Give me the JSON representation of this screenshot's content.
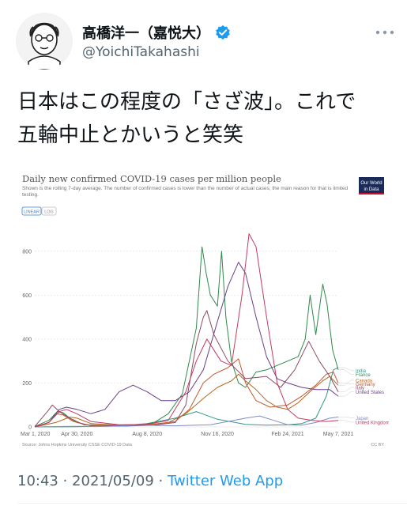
{
  "user": {
    "display_name": "高橋洋一（嘉悦大）",
    "handle": "@YoichiTakahashi",
    "verified": true
  },
  "tweet": {
    "text_line1": "日本はこの程度の「さざ波」。これで",
    "text_line2": "五輪中止とかいうと笑笑"
  },
  "footer": {
    "time": "10:43",
    "date": "2021/05/09",
    "separator": " · ",
    "app": "Twitter Web App"
  },
  "chart_data": {
    "type": "line",
    "title": "Daily new confirmed COVID-19 cases per million people",
    "subtitle": "Shown is the rolling 7-day average. The number of confirmed cases is lower than the number of actual cases; the main reason for that is limited testing.",
    "logo_text": [
      "Our World",
      "in Data"
    ],
    "toggle": [
      "LINEAR",
      "LOG"
    ],
    "source": "Source: Johns Hopkins University CSSE COVID-19 Data",
    "license": "CC BY",
    "ylim": [
      0,
      900
    ],
    "yticks": [
      0,
      200,
      400,
      600,
      800
    ],
    "x_tick_labels": [
      "Mar 1, 2020",
      "Apr 30, 2020",
      "Aug 8, 2020",
      "Nov 16, 2020",
      "Feb 24, 2021",
      "May 7, 2021"
    ],
    "x_tick_days": [
      0,
      60,
      160,
      260,
      360,
      432
    ],
    "x_range_days": [
      0,
      432
    ],
    "series": [
      {
        "name": "India",
        "color": "#2e9b86",
        "label_y": 258,
        "points": [
          [
            0,
            0
          ],
          [
            60,
            1
          ],
          [
            120,
            5
          ],
          [
            160,
            15
          ],
          [
            200,
            40
          ],
          [
            230,
            70
          ],
          [
            260,
            35
          ],
          [
            300,
            12
          ],
          [
            330,
            8
          ],
          [
            360,
            10
          ],
          [
            380,
            15
          ],
          [
            400,
            40
          ],
          [
            415,
            140
          ],
          [
            425,
            260
          ],
          [
            432,
            270
          ]
        ]
      },
      {
        "name": "France",
        "color": "#2e8a4a",
        "label_y": 240,
        "points": [
          [
            0,
            2
          ],
          [
            20,
            30
          ],
          [
            32,
            70
          ],
          [
            40,
            65
          ],
          [
            50,
            40
          ],
          [
            60,
            20
          ],
          [
            80,
            6
          ],
          [
            120,
            4
          ],
          [
            150,
            8
          ],
          [
            170,
            20
          ],
          [
            190,
            60
          ],
          [
            210,
            150
          ],
          [
            230,
            450
          ],
          [
            238,
            820
          ],
          [
            244,
            700
          ],
          [
            250,
            600
          ],
          [
            260,
            550
          ],
          [
            266,
            800
          ],
          [
            272,
            500
          ],
          [
            280,
            300
          ],
          [
            290,
            200
          ],
          [
            300,
            180
          ],
          [
            315,
            250
          ],
          [
            330,
            260
          ],
          [
            345,
            280
          ],
          [
            360,
            300
          ],
          [
            375,
            320
          ],
          [
            385,
            400
          ],
          [
            392,
            600
          ],
          [
            400,
            420
          ],
          [
            410,
            650
          ],
          [
            416,
            560
          ],
          [
            424,
            350
          ],
          [
            432,
            260
          ]
        ]
      },
      {
        "name": "Canada",
        "color": "#b5651d",
        "label_y": 213,
        "points": [
          [
            0,
            0
          ],
          [
            30,
            20
          ],
          [
            50,
            45
          ],
          [
            60,
            40
          ],
          [
            80,
            15
          ],
          [
            120,
            8
          ],
          [
            160,
            10
          ],
          [
            190,
            20
          ],
          [
            215,
            60
          ],
          [
            240,
            130
          ],
          [
            260,
            180
          ],
          [
            280,
            210
          ],
          [
            290,
            240
          ],
          [
            300,
            210
          ],
          [
            315,
            170
          ],
          [
            330,
            120
          ],
          [
            345,
            90
          ],
          [
            360,
            80
          ],
          [
            375,
            110
          ],
          [
            395,
            170
          ],
          [
            410,
            210
          ],
          [
            420,
            230
          ],
          [
            432,
            190
          ]
        ]
      },
      {
        "name": "Germany",
        "color": "#c2572d",
        "label_y": 196,
        "points": [
          [
            0,
            0
          ],
          [
            20,
            20
          ],
          [
            30,
            60
          ],
          [
            40,
            55
          ],
          [
            55,
            25
          ],
          [
            80,
            6
          ],
          [
            130,
            6
          ],
          [
            170,
            12
          ],
          [
            200,
            25
          ],
          [
            220,
            80
          ],
          [
            240,
            200
          ],
          [
            255,
            240
          ],
          [
            275,
            270
          ],
          [
            290,
            310
          ],
          [
            300,
            200
          ],
          [
            315,
            120
          ],
          [
            335,
            90
          ],
          [
            360,
            100
          ],
          [
            380,
            140
          ],
          [
            400,
            190
          ],
          [
            415,
            240
          ],
          [
            425,
            250
          ],
          [
            432,
            200
          ]
        ]
      },
      {
        "name": "Italy",
        "color": "#8c4a66",
        "label_y": 180,
        "points": [
          [
            0,
            2
          ],
          [
            18,
            70
          ],
          [
            25,
            100
          ],
          [
            35,
            70
          ],
          [
            50,
            40
          ],
          [
            70,
            10
          ],
          [
            130,
            4
          ],
          [
            170,
            8
          ],
          [
            200,
            20
          ],
          [
            215,
            100
          ],
          [
            230,
            380
          ],
          [
            240,
            500
          ],
          [
            245,
            530
          ],
          [
            255,
            420
          ],
          [
            275,
            300
          ],
          [
            300,
            220
          ],
          [
            330,
            230
          ],
          [
            350,
            180
          ],
          [
            370,
            260
          ],
          [
            390,
            390
          ],
          [
            405,
            300
          ],
          [
            420,
            230
          ],
          [
            432,
            160
          ]
        ]
      },
      {
        "name": "United States",
        "color": "#6b3f8a",
        "label_y": 160,
        "points": [
          [
            0,
            0
          ],
          [
            20,
            20
          ],
          [
            35,
            80
          ],
          [
            45,
            90
          ],
          [
            60,
            80
          ],
          [
            80,
            60
          ],
          [
            100,
            80
          ],
          [
            120,
            160
          ],
          [
            140,
            190
          ],
          [
            160,
            160
          ],
          [
            180,
            120
          ],
          [
            200,
            120
          ],
          [
            220,
            160
          ],
          [
            240,
            260
          ],
          [
            260,
            480
          ],
          [
            275,
            640
          ],
          [
            290,
            750
          ],
          [
            300,
            700
          ],
          [
            315,
            500
          ],
          [
            330,
            320
          ],
          [
            345,
            220
          ],
          [
            360,
            200
          ],
          [
            380,
            180
          ],
          [
            400,
            170
          ],
          [
            420,
            170
          ],
          [
            432,
            140
          ]
        ]
      },
      {
        "name": "Japan",
        "color": "#7f8cc8",
        "label_y": 42,
        "points": [
          [
            0,
            0
          ],
          [
            40,
            2
          ],
          [
            60,
            3
          ],
          [
            100,
            2
          ],
          [
            150,
            8
          ],
          [
            200,
            5
          ],
          [
            250,
            10
          ],
          [
            300,
            40
          ],
          [
            320,
            50
          ],
          [
            340,
            30
          ],
          [
            360,
            10
          ],
          [
            380,
            8
          ],
          [
            400,
            20
          ],
          [
            420,
            40
          ],
          [
            432,
            45
          ]
        ]
      },
      {
        "name": "United Kingdom",
        "color": "#c33b5e",
        "label_y": 22,
        "points": [
          [
            0,
            0
          ],
          [
            20,
            20
          ],
          [
            35,
            70
          ],
          [
            45,
            80
          ],
          [
            60,
            60
          ],
          [
            80,
            25
          ],
          [
            120,
            10
          ],
          [
            160,
            12
          ],
          [
            190,
            30
          ],
          [
            215,
            160
          ],
          [
            230,
            300
          ],
          [
            245,
            400
          ],
          [
            255,
            350
          ],
          [
            265,
            300
          ],
          [
            280,
            280
          ],
          [
            295,
            600
          ],
          [
            305,
            880
          ],
          [
            315,
            820
          ],
          [
            330,
            500
          ],
          [
            345,
            200
          ],
          [
            360,
            80
          ],
          [
            375,
            40
          ],
          [
            395,
            30
          ],
          [
            415,
            25
          ],
          [
            432,
            30
          ]
        ]
      }
    ]
  }
}
